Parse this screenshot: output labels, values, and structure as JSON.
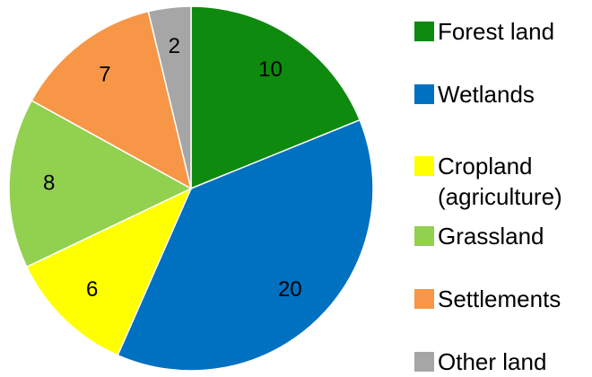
{
  "chart_data": {
    "type": "pie",
    "categories": [
      "Forest land",
      "Wetlands",
      "Cropland (agriculture)",
      "Grassland",
      "Settlements",
      "Other land"
    ],
    "values": [
      10,
      20,
      6,
      8,
      7,
      2
    ],
    "colors": [
      "#0e8a0e",
      "#0070c0",
      "#ffff00",
      "#92d050",
      "#f79646",
      "#a6a6a6"
    ]
  }
}
